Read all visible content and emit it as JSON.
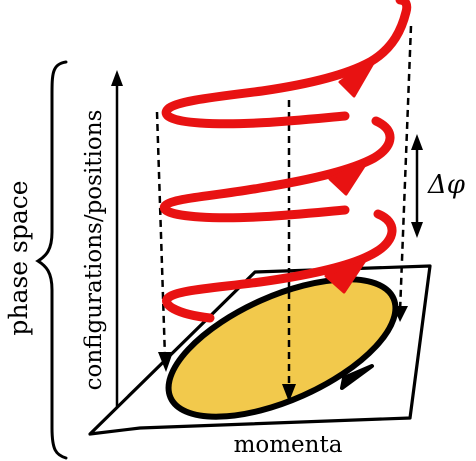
{
  "labels": {
    "phase_space": "phase space",
    "configurations": "configurations/positions",
    "momenta": "momenta",
    "delta_phi": "Δφ"
  },
  "colors": {
    "helix": "#e81212",
    "ellipse_fill": "#f2c94c",
    "ink": "#000000",
    "background": "#ffffff"
  }
}
